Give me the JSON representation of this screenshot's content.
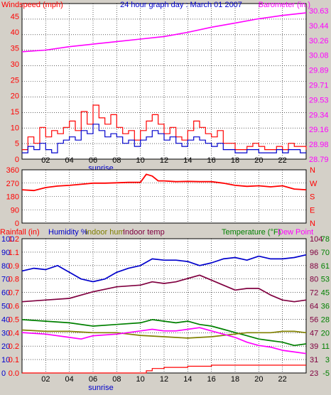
{
  "window": {
    "title": "24 hour graph day : March 01 2007"
  },
  "colors": {
    "frame": "#d4d0c8",
    "plot_bg": "#ffffff",
    "grid": "#000000",
    "red": "#ff0000",
    "blue": "#0000cc",
    "magenta": "#ff00ff",
    "green": "#008000",
    "olive": "#808000",
    "maroon": "#800040",
    "dark_red": "#cc0000"
  },
  "chart_data": [
    {
      "type": "line",
      "title": "24 hour graph day : March 01 2007",
      "left_axis_label": "Windspeed (mph)",
      "right_axis_label": "Barometer (in.)",
      "left_ticks": [
        "45",
        "40",
        "35",
        "30",
        "25",
        "20",
        "15",
        "10",
        "5",
        "0"
      ],
      "right_ticks": [
        "30.63",
        "30.44",
        "30.26",
        "30.08",
        "29.89",
        "29.71",
        "29.53",
        "29.34",
        "29.16",
        "28.98",
        "28.79"
      ],
      "x_ticks": [
        "02",
        "04",
        "06",
        "08",
        "10",
        "12",
        "14",
        "16",
        "18",
        "20",
        "22"
      ],
      "x_marker": "sunrise",
      "ylim_left": [
        0,
        49
      ],
      "ylim_right": [
        28.79,
        30.63
      ],
      "xlim": [
        0,
        24
      ],
      "series": [
        {
          "key": "barometer",
          "axis": "right",
          "color": "magenta",
          "x": [
            0,
            2,
            4,
            6,
            8,
            10,
            12,
            14,
            16,
            18,
            20,
            22,
            24
          ],
          "y": [
            30.06,
            30.08,
            30.12,
            30.15,
            30.18,
            30.21,
            30.24,
            30.29,
            30.35,
            30.4,
            30.45,
            30.49,
            30.52
          ]
        },
        {
          "key": "gust",
          "axis": "left",
          "color": "red",
          "x": [
            0,
            0.5,
            1,
            1.5,
            2,
            2.5,
            3,
            3.5,
            4,
            4.5,
            5,
            5.5,
            6,
            6.5,
            7,
            7.5,
            8,
            8.5,
            9,
            9.5,
            10,
            10.5,
            11,
            11.5,
            12,
            12.5,
            13,
            13.5,
            14,
            14.5,
            15,
            15.5,
            16,
            16.5,
            17,
            17.5,
            18,
            18.5,
            19,
            19.5,
            20,
            20.5,
            21,
            21.5,
            22,
            22.5,
            23,
            23.5,
            24
          ],
          "y": [
            3,
            7,
            5,
            10,
            7,
            9,
            8,
            10,
            12,
            9,
            15,
            11,
            17,
            13,
            11,
            14,
            10,
            8,
            9,
            6,
            9,
            12,
            14,
            11,
            8,
            10,
            7,
            6,
            9,
            12,
            10,
            8,
            7,
            9,
            5,
            5,
            3,
            3,
            4,
            5,
            4,
            3,
            3,
            4,
            3,
            5,
            4,
            4,
            3
          ]
        },
        {
          "key": "wind",
          "axis": "left",
          "color": "blue",
          "x": [
            0,
            0.5,
            1,
            1.5,
            2,
            2.5,
            3,
            3.5,
            4,
            4.5,
            5,
            5.5,
            6,
            6.5,
            7,
            7.5,
            8,
            8.5,
            9,
            9.5,
            10,
            10.5,
            11,
            11.5,
            12,
            12.5,
            13,
            13.5,
            14,
            14.5,
            15,
            15.5,
            16,
            16.5,
            17,
            17.5,
            18,
            18.5,
            19,
            19.5,
            20,
            20.5,
            21,
            21.5,
            22,
            22.5,
            23,
            23.5,
            24
          ],
          "y": [
            2,
            4,
            3,
            5,
            3,
            2,
            5,
            6,
            7,
            6,
            9,
            8,
            11,
            9,
            7,
            8,
            7,
            5,
            6,
            4,
            6,
            7,
            9,
            8,
            6,
            7,
            5,
            4,
            6,
            7,
            6,
            5,
            4,
            5,
            3,
            3,
            2,
            2,
            3,
            3,
            2,
            2,
            2,
            3,
            2,
            3,
            3,
            2,
            2
          ]
        }
      ]
    },
    {
      "type": "scatter",
      "left_ticks": [
        "360",
        "270",
        "180",
        "90",
        "0"
      ],
      "right_ticks": [
        "N",
        "W",
        "S",
        "E",
        "N"
      ],
      "ylim": [
        0,
        360
      ],
      "xlim": [
        0,
        24
      ],
      "series": [
        {
          "key": "direction",
          "color": "red",
          "x": [
            0,
            1,
            2,
            3,
            4,
            5,
            6,
            7,
            8,
            9,
            10,
            10.5,
            11,
            11.5,
            12,
            13,
            14,
            15,
            16,
            17,
            18,
            19,
            20,
            21,
            22,
            23,
            24
          ],
          "y": [
            225,
            220,
            240,
            250,
            255,
            262,
            270,
            270,
            272,
            275,
            275,
            330,
            318,
            285,
            285,
            280,
            282,
            280,
            280,
            270,
            255,
            248,
            252,
            245,
            252,
            230,
            225
          ]
        }
      ]
    },
    {
      "type": "line",
      "header_labels": [
        {
          "text": "Rainfall (in)",
          "color": "red"
        },
        {
          "text": "Humidity %",
          "color": "blue"
        },
        {
          "text": "Indoor hum",
          "color": "olive"
        },
        {
          "text": "Indoor temp",
          "color": "maroon"
        },
        {
          "text": "Temperature (°F)",
          "color": "green"
        },
        {
          "text": "Dew Point",
          "color": "magenta"
        }
      ],
      "left_outer_ticks": [
        "100",
        "90",
        "80",
        "70",
        "60",
        "50",
        "40",
        "30",
        "20",
        "10",
        "0"
      ],
      "left_inner_ticks": [
        "1.2",
        "1.1",
        "0.9",
        "0.8",
        "0.7",
        "0.6",
        "0.5",
        "0.4",
        "0.2",
        "0.1",
        "0.0"
      ],
      "right_inner_ticks": [
        "104",
        "96",
        "88",
        "80",
        "72",
        "64",
        "56",
        "47",
        "39",
        "31",
        "23"
      ],
      "right_outer_ticks": [
        "78",
        "70",
        "61",
        "53",
        "45",
        "36",
        "28",
        "20",
        "11",
        "3",
        "-5"
      ],
      "x_ticks": [
        "02",
        "04",
        "06",
        "08",
        "10",
        "12",
        "14",
        "16",
        "18",
        "20",
        "22"
      ],
      "x_marker": "sunrise",
      "ylim_percent": [
        0,
        100
      ],
      "xlim": [
        0,
        24
      ],
      "series": [
        {
          "key": "humidity",
          "axis": "percent",
          "color": "blue",
          "x": [
            0,
            1,
            2,
            3,
            4,
            5,
            6,
            7,
            8,
            9,
            10,
            11,
            12,
            13,
            14,
            15,
            16,
            17,
            18,
            19,
            20,
            21,
            22,
            23,
            24
          ],
          "y": [
            76,
            78,
            77,
            80,
            75,
            70,
            68,
            70,
            75,
            78,
            80,
            85,
            84,
            84,
            83,
            80,
            82,
            85,
            86,
            84,
            87,
            85,
            85,
            86,
            88
          ]
        },
        {
          "key": "indoor_temp",
          "axis": "right_inner",
          "color": "maroon",
          "x": [
            0,
            2,
            4,
            5,
            6,
            8,
            10,
            11,
            12,
            13,
            14,
            15,
            16,
            17,
            18,
            19,
            20,
            21,
            22,
            23,
            24
          ],
          "y": [
            66,
            67,
            68,
            70,
            72,
            75,
            76,
            78,
            77,
            78,
            80,
            82,
            79,
            76,
            73,
            74,
            74,
            70,
            67,
            66,
            67
          ]
        },
        {
          "key": "temperature",
          "axis": "right_outer",
          "color": "green",
          "x": [
            0,
            2,
            4,
            6,
            8,
            10,
            11,
            12,
            13,
            14,
            15,
            16,
            17,
            18,
            19,
            20,
            21,
            22,
            23,
            24
          ],
          "y": [
            28,
            27,
            26,
            24,
            25,
            26,
            28,
            27,
            26,
            27,
            25,
            24,
            22,
            20,
            18,
            16,
            15,
            14,
            12,
            13
          ]
        },
        {
          "key": "indoor_hum",
          "axis": "percent",
          "color": "olive",
          "x": [
            0,
            2,
            4,
            6,
            8,
            10,
            12,
            14,
            16,
            18,
            19,
            20,
            21,
            22,
            23,
            24
          ],
          "y": [
            32,
            31,
            31,
            30,
            30,
            28,
            27,
            26,
            27,
            29,
            30,
            30,
            30,
            31,
            31,
            30
          ]
        },
        {
          "key": "dew_point",
          "axis": "right_outer",
          "color": "magenta",
          "x": [
            0,
            2,
            4,
            5,
            6,
            8,
            10,
            11,
            12,
            13,
            14,
            15,
            16,
            17,
            18,
            19,
            20,
            21,
            22,
            23,
            24
          ],
          "y": [
            20,
            19,
            17,
            16,
            18,
            19,
            21,
            22,
            21,
            21,
            22,
            23,
            21,
            19,
            17,
            14,
            12,
            11,
            9,
            8,
            7
          ]
        },
        {
          "key": "rainfall",
          "axis": "rain",
          "color": "red",
          "x": [
            0,
            10,
            10.5,
            11,
            12,
            13,
            14,
            15,
            16,
            24
          ],
          "y": [
            0.0,
            0.0,
            0.02,
            0.04,
            0.05,
            0.05,
            0.06,
            0.06,
            0.07,
            0.07
          ]
        }
      ]
    }
  ]
}
